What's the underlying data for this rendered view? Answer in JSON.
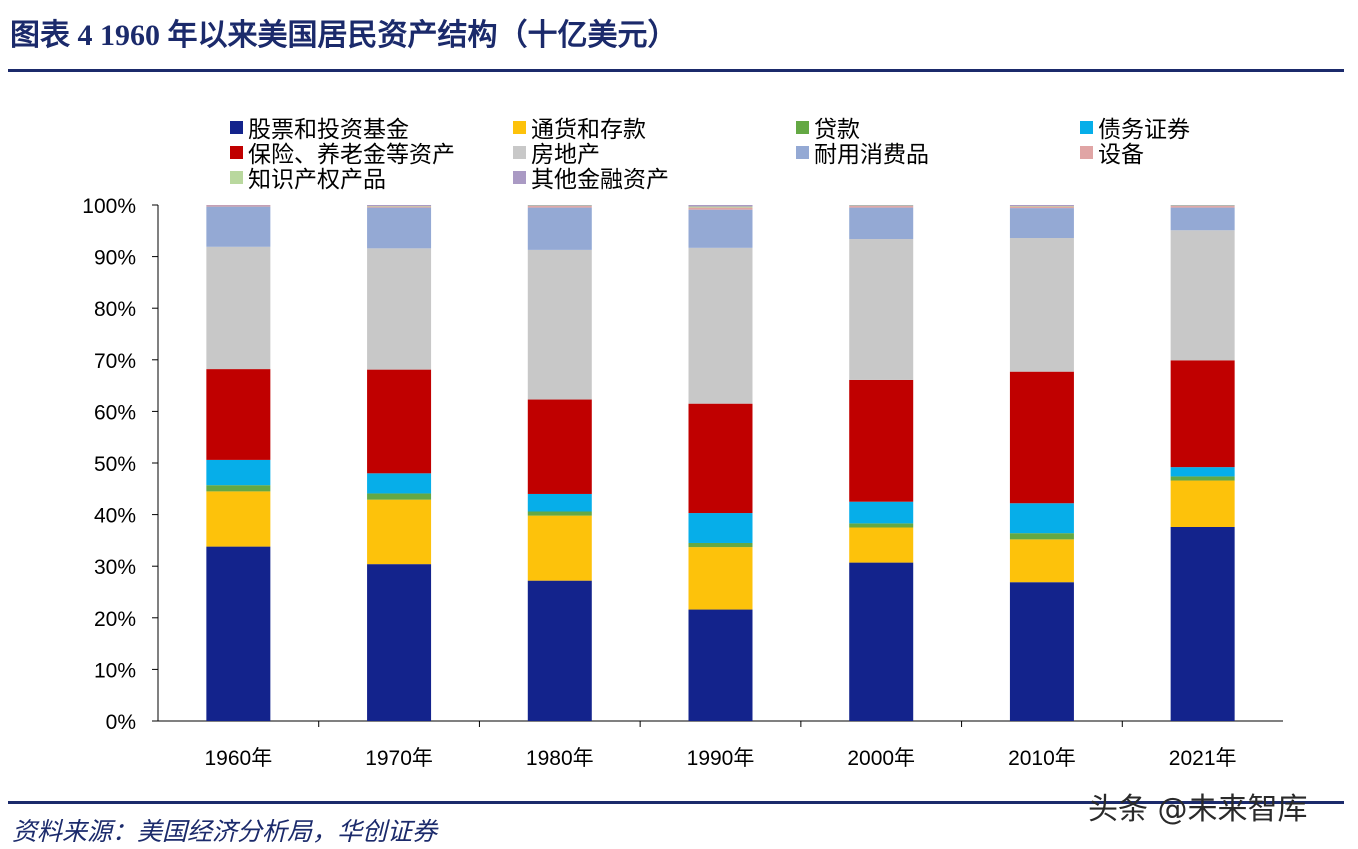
{
  "header": {
    "title": "图表 4   1960 年以来美国居民资产结构（十亿美元）"
  },
  "footer": {
    "source": "资料来源：美国经济分析局，华创证券",
    "watermark": "头条 @未来智库"
  },
  "chart_data": {
    "type": "bar",
    "stacked": true,
    "title": "1960 年以来美国居民资产结构（十亿美元）",
    "categories": [
      "1960年",
      "1970年",
      "1980年",
      "1990年",
      "2000年",
      "2010年",
      "2021年"
    ],
    "ylim": [
      0,
      100
    ],
    "yticks": [
      "0%",
      "10%",
      "20%",
      "30%",
      "40%",
      "50%",
      "60%",
      "70%",
      "80%",
      "90%",
      "100%"
    ],
    "series": [
      {
        "name": "股票和投资基金",
        "color": "#13238c",
        "values": [
          33.8,
          30.4,
          27.2,
          21.6,
          30.7,
          26.9,
          37.6
        ]
      },
      {
        "name": "通货和存款",
        "color": "#fdc20b",
        "values": [
          10.7,
          12.5,
          12.6,
          12.1,
          6.8,
          8.3,
          9.0
        ]
      },
      {
        "name": "贷款",
        "color": "#64a844",
        "values": [
          1.2,
          1.2,
          0.8,
          0.8,
          0.8,
          1.2,
          0.8
        ]
      },
      {
        "name": "债务证券",
        "color": "#06aee9",
        "values": [
          4.9,
          3.9,
          3.4,
          5.8,
          4.2,
          5.8,
          1.8
        ]
      },
      {
        "name": "保险、养老金等资产",
        "color": "#c00000",
        "values": [
          17.6,
          20.1,
          18.3,
          21.2,
          23.6,
          25.5,
          20.7
        ]
      },
      {
        "name": "房地产",
        "color": "#c8c8c8",
        "values": [
          23.7,
          23.5,
          29.0,
          30.2,
          27.3,
          25.9,
          25.2
        ]
      },
      {
        "name": "耐用消费品",
        "color": "#94a9d4",
        "values": [
          7.8,
          7.9,
          8.2,
          7.4,
          6.1,
          5.8,
          4.4
        ]
      },
      {
        "name": "设备",
        "color": "#e0a5a5",
        "values": [
          0.2,
          0.2,
          0.3,
          0.4,
          0.3,
          0.3,
          0.3
        ]
      },
      {
        "name": "知识产权产品",
        "color": "#b9d89e",
        "values": [
          0.0,
          0.1,
          0.1,
          0.2,
          0.1,
          0.1,
          0.1
        ]
      },
      {
        "name": "其他金融资产",
        "color": "#aa9ac4",
        "values": [
          0.1,
          0.2,
          0.1,
          0.3,
          0.1,
          0.2,
          0.1
        ]
      }
    ]
  }
}
